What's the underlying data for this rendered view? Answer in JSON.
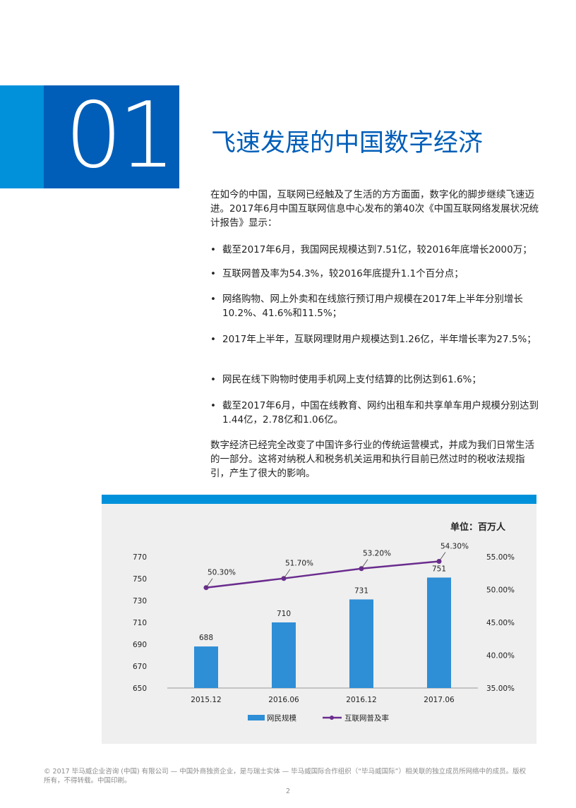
{
  "header": {
    "chapter_number": "01",
    "title": "飞速发展的中国数字经济"
  },
  "intro": "在如今的中国，互联网已经触及了生活的方方面面，数字化的脚步继续飞速迈进。2017年6月中国互联网信息中心发布的第40次《中国互联网络发展状况统计报告》显示：",
  "bullets": [
    "截至2017年6月，我国网民规模达到7.51亿，较2016年底增长2000万；",
    "互联网普及率为54.3%，较2016年底提升1.1个百分点；",
    "网络购物、网上外卖和在线旅行预订用户规模在2017年上半年分别增长10.2%、41.6%和11.5%；",
    "2017年上半年，互联网理财用户规模达到1.26亿，半年增长率为27.5%；",
    "网民在线下购物时使用手机网上支付结算的比例达到61.6%；",
    "截至2017年6月，中国在线教育、网约出租车和共享单车用户规模分别达到1.44亿，2.78亿和1.06亿。"
  ],
  "conclusion": "数字经济已经完全改变了中国许多行业的传统运营模式，并成为我们日常生活的一部分。这将对纳税人和税务机关运用和执行目前已然过时的税收法规指引，产生了很大的影响。",
  "chart_data": {
    "type": "bar",
    "unit_label": "单位：百万人",
    "categories": [
      "2015.12",
      "2016.06",
      "2016.12",
      "2017.06"
    ],
    "series": [
      {
        "name": "网民规模",
        "type": "bar",
        "axis": "left",
        "values": [
          688,
          710,
          731,
          751
        ],
        "labels": [
          "688",
          "710",
          "731",
          "751"
        ],
        "color": "#2e8ed6"
      },
      {
        "name": "互联网普及率",
        "type": "line",
        "axis": "right",
        "values": [
          50.3,
          51.7,
          53.2,
          54.3
        ],
        "labels": [
          "50.30%",
          "51.70%",
          "53.20%",
          "54.30%"
        ],
        "color": "#6a2c8e"
      }
    ],
    "ylim": [
      650,
      770
    ],
    "y_ticks": [
      "650",
      "670",
      "690",
      "710",
      "730",
      "750",
      "770"
    ],
    "y2lim": [
      35,
      55
    ],
    "y2_ticks": [
      "35.00%",
      "40.00%",
      "45.00%",
      "50.00%",
      "55.00%"
    ],
    "grid": false,
    "legend_position": "bottom"
  },
  "footer": {
    "text": "© 2017 毕马威企业咨询 (中国) 有限公司 — 中国外商独资企业，是与瑞士实体 — 毕马威国际合作组织（“毕马威国际”）相关联的独立成员所网络中的成员。版权所有，不得转载。中国印刷。",
    "page_number": "2"
  }
}
